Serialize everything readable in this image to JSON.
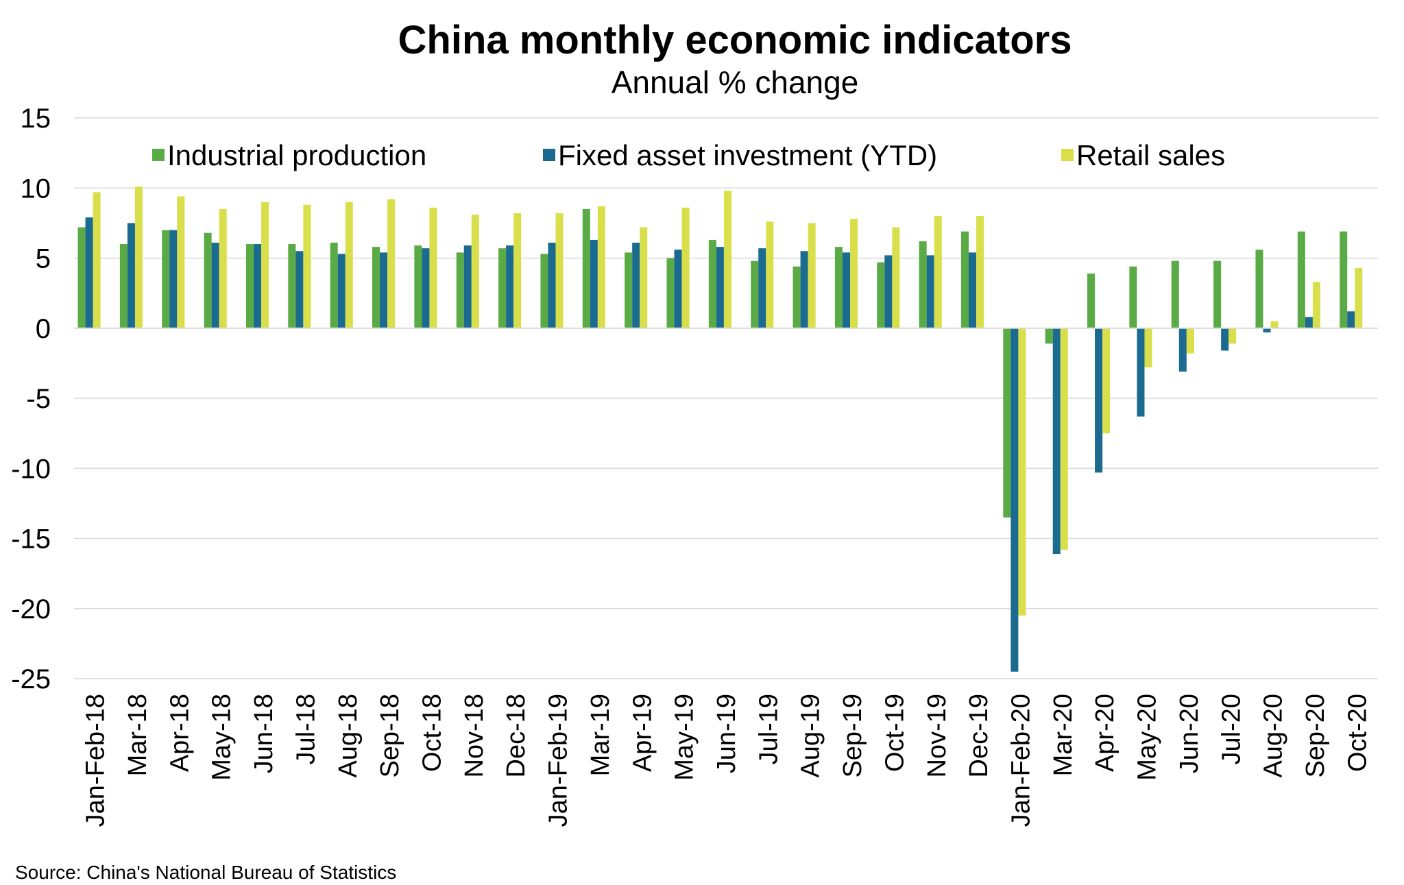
{
  "chart_data": {
    "type": "bar",
    "title": "China monthly economic indicators",
    "subtitle": "Annual % change",
    "source": "Source: China's National Bureau of Statistics",
    "ylim": [
      -25,
      15
    ],
    "yticks": [
      15,
      10,
      5,
      0,
      -5,
      -10,
      -15,
      -20,
      -25
    ],
    "grid": true,
    "legend_position": "top",
    "categories": [
      "Jan-Feb-18",
      "Mar-18",
      "Apr-18",
      "May-18",
      "Jun-18",
      "Jul-18",
      "Aug-18",
      "Sep-18",
      "Oct-18",
      "Nov-18",
      "Dec-18",
      "Jan-Feb-19",
      "Mar-19",
      "Apr-19",
      "May-19",
      "Jun-19",
      "Jul-19",
      "Aug-19",
      "Sep-19",
      "Oct-19",
      "Nov-19",
      "Dec-19",
      "Jan-Feb-20",
      "Mar-20",
      "Apr-20",
      "May-20",
      "Jun-20",
      "Jul-20",
      "Aug-20",
      "Sep-20",
      "Oct-20"
    ],
    "series": [
      {
        "name": "Industrial production",
        "color": "#5aab46",
        "values": [
          7.2,
          6.0,
          7.0,
          6.8,
          6.0,
          6.0,
          6.1,
          5.8,
          5.9,
          5.4,
          5.7,
          5.3,
          8.5,
          5.4,
          5.0,
          6.3,
          4.8,
          4.4,
          5.8,
          4.7,
          6.2,
          6.9,
          -13.5,
          -1.1,
          3.9,
          4.4,
          4.8,
          4.8,
          5.6,
          6.9,
          6.9
        ]
      },
      {
        "name": "Fixed asset investment (YTD)",
        "color": "#1b6a8f",
        "values": [
          7.9,
          7.5,
          7.0,
          6.1,
          6.0,
          5.5,
          5.3,
          5.4,
          5.7,
          5.9,
          5.9,
          6.1,
          6.3,
          6.1,
          5.6,
          5.8,
          5.7,
          5.5,
          5.4,
          5.2,
          5.2,
          5.4,
          -24.5,
          -16.1,
          -10.3,
          -6.3,
          -3.1,
          -1.6,
          -0.3,
          0.8,
          1.2
        ]
      },
      {
        "name": "Retail sales",
        "color": "#d9df4a",
        "values": [
          9.7,
          10.1,
          9.4,
          8.5,
          9.0,
          8.8,
          9.0,
          9.2,
          8.6,
          8.1,
          8.2,
          8.2,
          8.7,
          7.2,
          8.6,
          9.8,
          7.6,
          7.5,
          7.8,
          7.2,
          8.0,
          8.0,
          -20.5,
          -15.8,
          -7.5,
          -2.8,
          -1.8,
          -1.1,
          0.5,
          3.3,
          4.3
        ]
      }
    ]
  }
}
